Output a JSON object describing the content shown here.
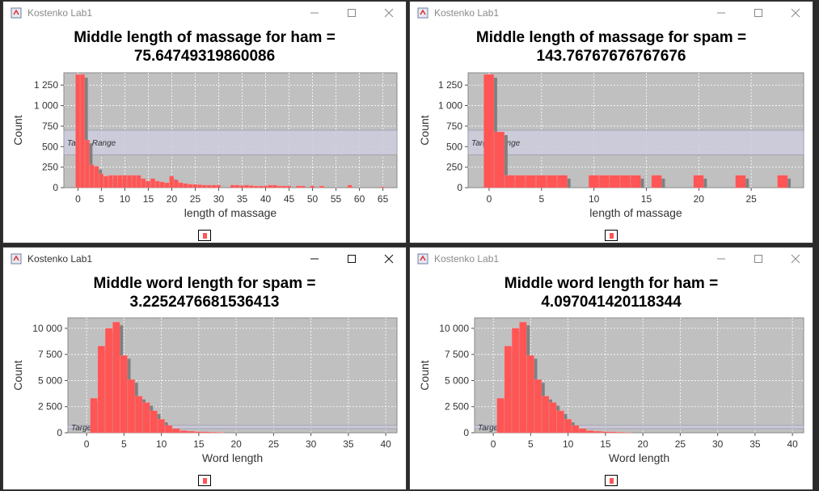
{
  "windows": [
    {
      "id": "w1",
      "title": "Kostenko Lab1",
      "active": false,
      "chart_title_line1": "Middle length of massage for ham =",
      "chart_title_line2": "75.64749319860086",
      "xlabel": "length of massage",
      "ylabel": "Count",
      "marker_label": "Target Range"
    },
    {
      "id": "w2",
      "title": "Kostenko Lab1",
      "active": false,
      "chart_title_line1": "Middle length of massage for spam =",
      "chart_title_line2": "143.76767676767676",
      "xlabel": "length of massage",
      "ylabel": "Count",
      "marker_label": "Target Range"
    },
    {
      "id": "w3",
      "title": "Kostenko Lab1",
      "active": true,
      "chart_title_line1": "Middle word length for spam =",
      "chart_title_line2": "3.2252476681536413",
      "xlabel": "Word length",
      "ylabel": "Count",
      "marker_label": "Target Range"
    },
    {
      "id": "w4",
      "title": "Kostenko Lab1",
      "active": false,
      "chart_title_line1": "Middle word length for ham =",
      "chart_title_line2": "4.097041420118344",
      "xlabel": "Word length",
      "ylabel": "Count",
      "marker_label": "Target Range"
    }
  ],
  "colors": {
    "bar": "#ff5555",
    "shadow": "#808080",
    "plot_bg": "#c0c0c0",
    "marker_band": "#ccccdd",
    "gridline": "#ffffff"
  },
  "chart_data": [
    {
      "type": "bar",
      "title": "Middle length of massage for ham = 75.64749319860086",
      "xlabel": "length of massage",
      "ylabel": "Count",
      "xlim": [
        -3,
        68
      ],
      "ylim": [
        0,
        1400
      ],
      "xticks": [
        0,
        5,
        10,
        15,
        20,
        25,
        30,
        35,
        40,
        45,
        50,
        55,
        60,
        65
      ],
      "yticks": [
        0,
        250,
        500,
        750,
        1000,
        1250
      ],
      "ytick_labels": [
        "0",
        "250",
        "500",
        "750",
        "1 000",
        "1 250"
      ],
      "grid": true,
      "bin_width": 1,
      "x": [
        0,
        1,
        2,
        3,
        4,
        5,
        6,
        7,
        8,
        9,
        10,
        11,
        12,
        13,
        14,
        15,
        16,
        17,
        18,
        19,
        20,
        21,
        22,
        23,
        24,
        25,
        26,
        27,
        28,
        29,
        30,
        33,
        34,
        35,
        36,
        37,
        38,
        39,
        40,
        41,
        42,
        43,
        44,
        45,
        47,
        48,
        50,
        52,
        58,
        65
      ],
      "values": [
        1380,
        1380,
        580,
        280,
        260,
        170,
        140,
        150,
        150,
        150,
        150,
        150,
        150,
        150,
        110,
        80,
        110,
        80,
        70,
        60,
        140,
        90,
        60,
        50,
        40,
        40,
        35,
        30,
        30,
        30,
        30,
        30,
        30,
        25,
        30,
        25,
        20,
        20,
        20,
        30,
        30,
        20,
        20,
        20,
        20,
        20,
        20,
        20,
        30,
        10
      ],
      "marker": {
        "label": "Target Range",
        "from": 400,
        "to": 700
      }
    },
    {
      "type": "bar",
      "title": "Middle length of massage for spam = 143.76767676767676",
      "xlabel": "length of massage",
      "ylabel": "Count",
      "xlim": [
        -2,
        30
      ],
      "ylim": [
        0,
        1400
      ],
      "xticks": [
        0,
        5,
        10,
        15,
        20,
        25
      ],
      "yticks": [
        0,
        250,
        500,
        750,
        1000,
        1250
      ],
      "ytick_labels": [
        "0",
        "250",
        "500",
        "750",
        "1 000",
        "1 250"
      ],
      "grid": true,
      "bin_width": 1,
      "x": [
        0,
        1,
        2,
        3,
        4,
        5,
        6,
        7,
        10,
        11,
        12,
        13,
        14,
        16,
        20,
        24,
        28
      ],
      "values": [
        1380,
        680,
        150,
        150,
        150,
        150,
        150,
        150,
        150,
        150,
        150,
        150,
        150,
        150,
        150,
        150,
        150
      ],
      "marker": {
        "label": "Target Range",
        "from": 400,
        "to": 700
      }
    },
    {
      "type": "bar",
      "title": "Middle word length for spam = 3.2252476681536413",
      "xlabel": "Word length",
      "ylabel": "Count",
      "xlim": [
        -2.5,
        41.5
      ],
      "ylim": [
        0,
        11000
      ],
      "xticks": [
        0,
        5,
        10,
        15,
        20,
        25,
        30,
        35,
        40
      ],
      "yticks": [
        0,
        2500,
        5000,
        7500,
        10000
      ],
      "ytick_labels": [
        "0",
        "2 500",
        "5 000",
        "7 500",
        "10 000"
      ],
      "grid": true,
      "bin_width": 1,
      "x": [
        1,
        2,
        3,
        4,
        5,
        6,
        7,
        8,
        9,
        10,
        11,
        12,
        13,
        14,
        15,
        16,
        17,
        18
      ],
      "values": [
        3300,
        8300,
        10000,
        10600,
        7400,
        5100,
        3500,
        2900,
        2100,
        1300,
        700,
        400,
        200,
        150,
        100,
        80,
        50,
        30
      ],
      "marker": {
        "label": "Target Range",
        "from": 400,
        "to": 700
      }
    },
    {
      "type": "bar",
      "title": "Middle word length for ham = 4.097041420118344",
      "xlabel": "Word length",
      "ylabel": "Count",
      "xlim": [
        -2.5,
        41.5
      ],
      "ylim": [
        0,
        11000
      ],
      "xticks": [
        0,
        5,
        10,
        15,
        20,
        25,
        30,
        35,
        40
      ],
      "yticks": [
        0,
        2500,
        5000,
        7500,
        10000
      ],
      "ytick_labels": [
        "0",
        "2 500",
        "5 000",
        "7 500",
        "10 000"
      ],
      "grid": true,
      "bin_width": 1,
      "x": [
        1,
        2,
        3,
        4,
        5,
        6,
        7,
        8,
        9,
        10,
        11,
        12,
        13,
        14,
        15,
        16,
        17,
        18
      ],
      "values": [
        3300,
        8300,
        10000,
        10600,
        7400,
        5100,
        3500,
        2900,
        2100,
        1300,
        700,
        400,
        200,
        150,
        100,
        80,
        50,
        30
      ],
      "marker": {
        "label": "Target Range",
        "from": 400,
        "to": 700
      }
    }
  ]
}
